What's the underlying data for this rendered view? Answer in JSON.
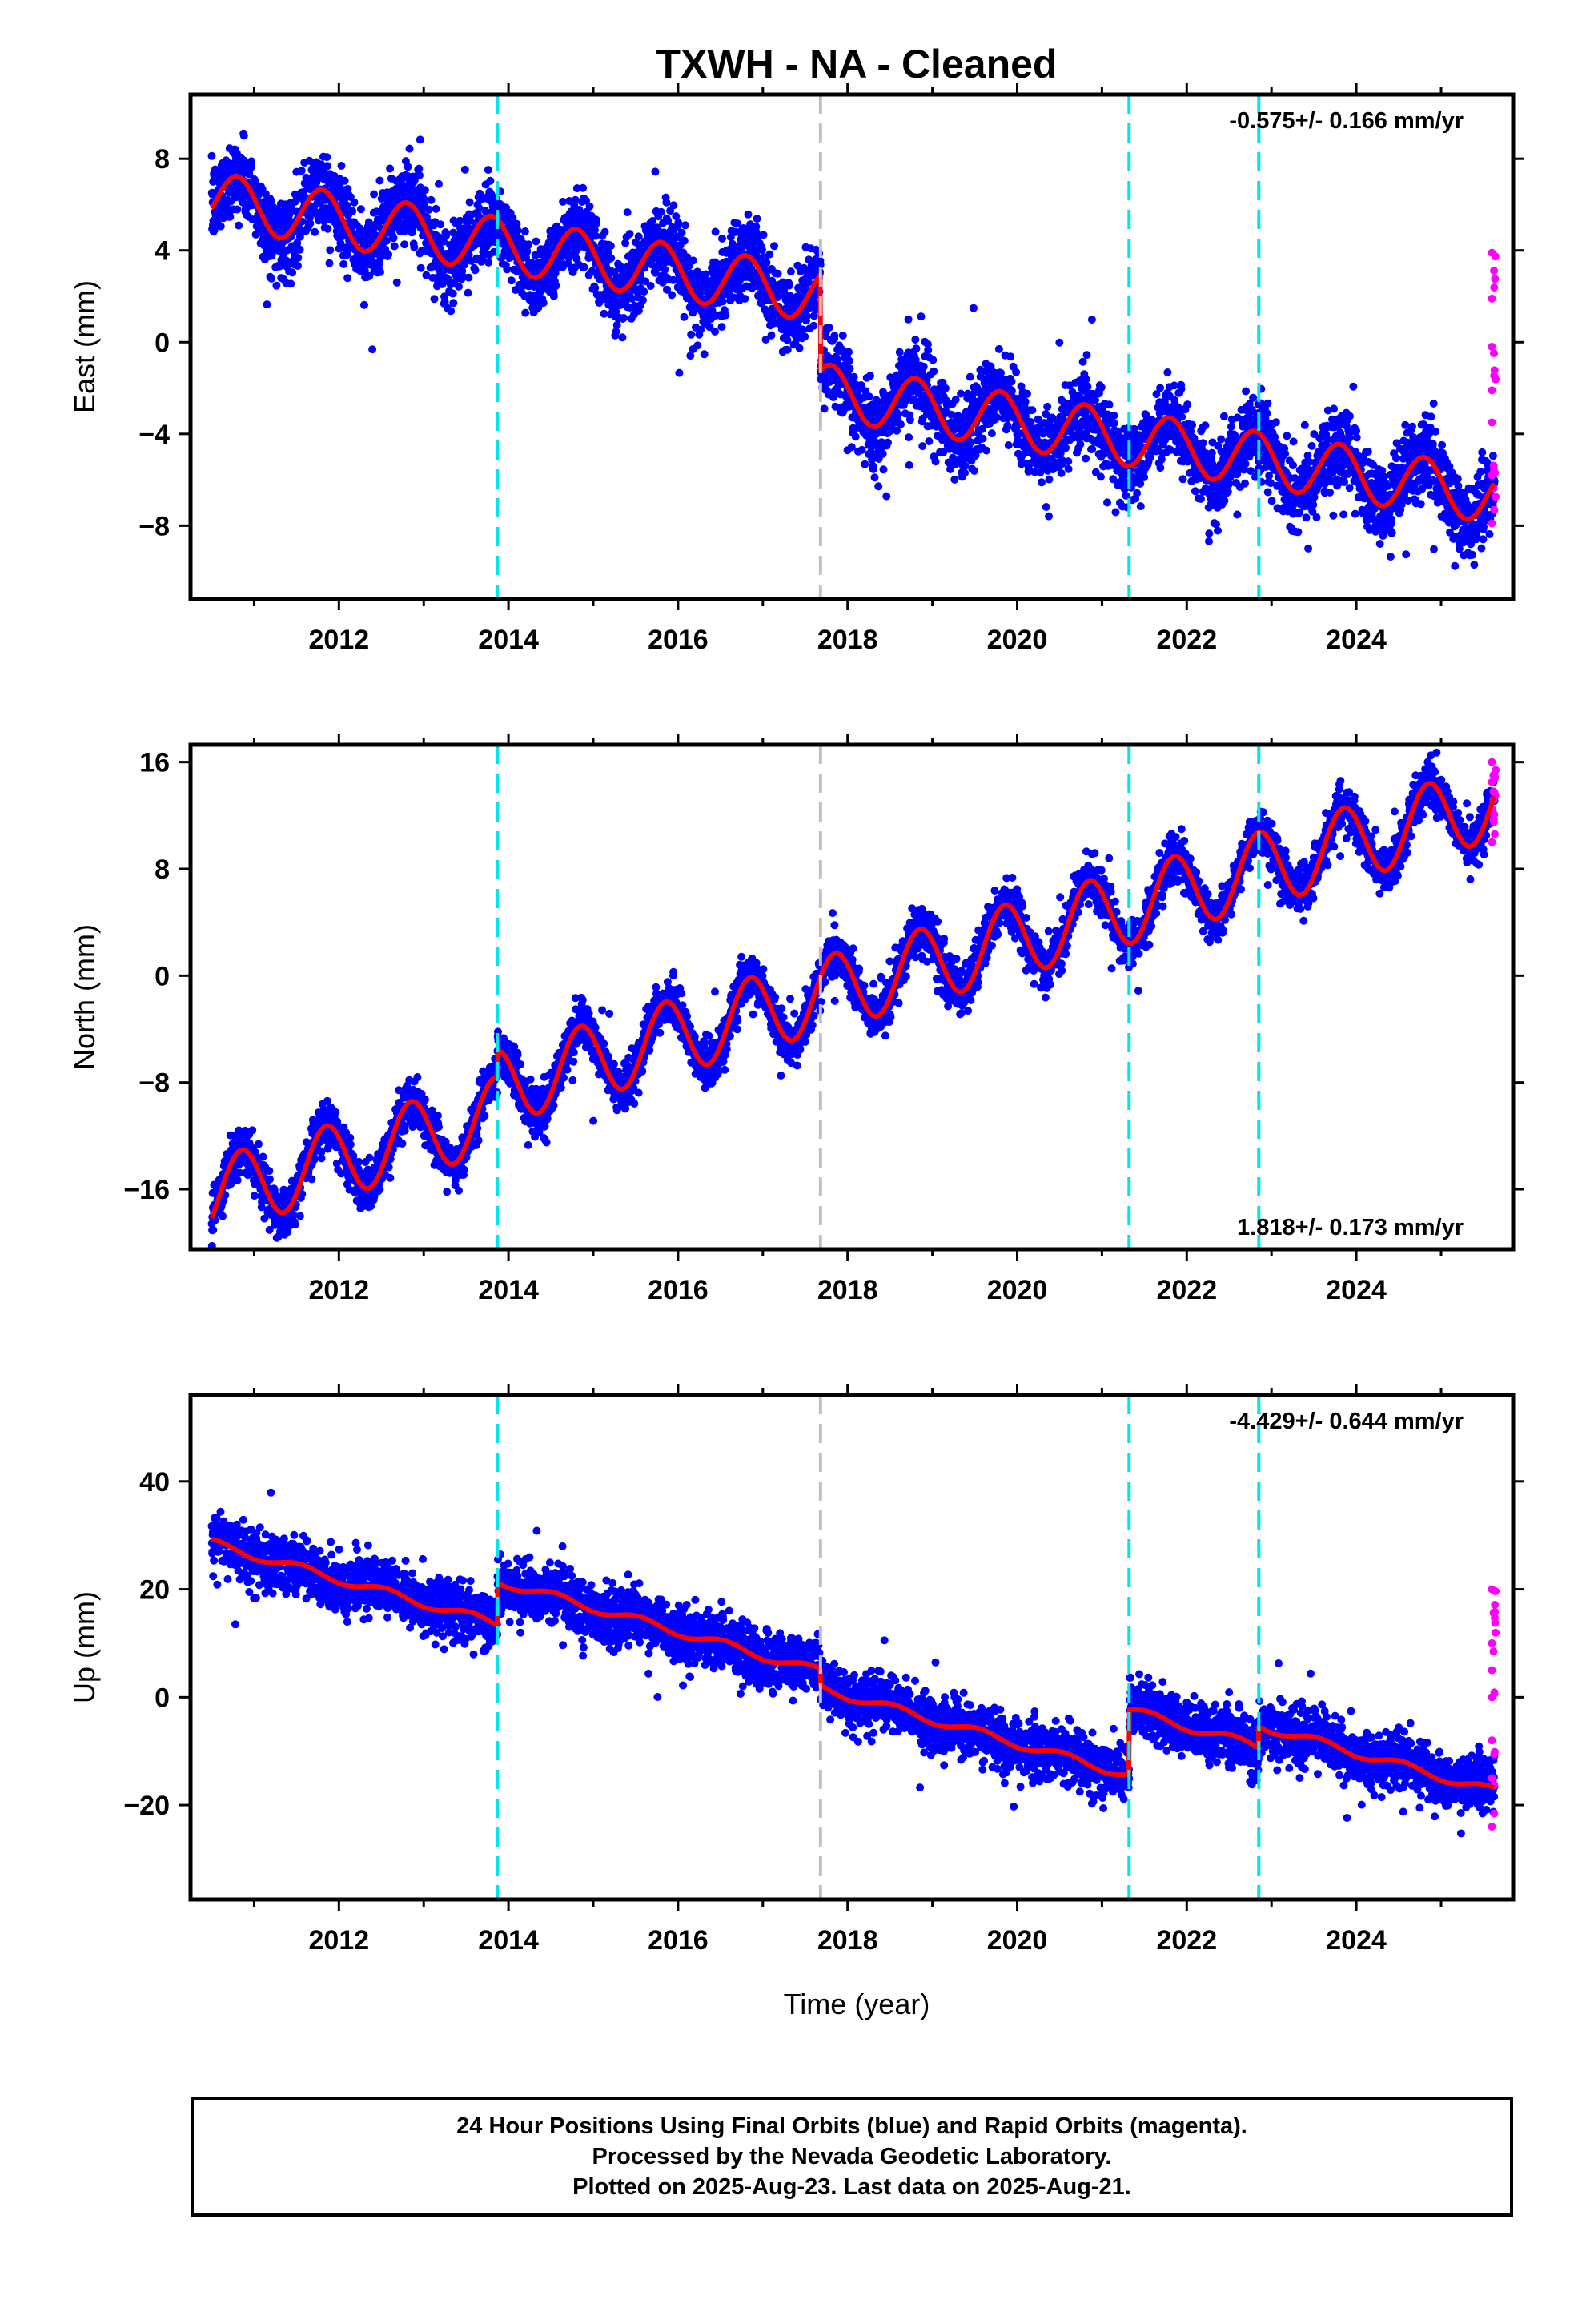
{
  "title": "TXWH  - NA - Cleaned",
  "x_axis_label": "Time (year)",
  "footer": {
    "line1": "24 Hour Positions Using Final Orbits (blue) and Rapid Orbits (magenta).",
    "line2": "Processed by the Nevada Geodetic Laboratory.",
    "line3": "Plotted on 2025-Aug-23. Last data on 2025-Aug-21."
  },
  "colors": {
    "final_orbits": "#0000ff",
    "rapid_orbits": "#ff00ff",
    "model": "#ff0000",
    "event_equipment": "#00e5ee",
    "event_other": "#c0c0c0"
  },
  "chart_data": [
    {
      "type": "scatter",
      "component": "East",
      "ylabel": "East (mm)",
      "xlim": [
        2010.25,
        2025.85
      ],
      "ylim": [
        -11.2,
        10.8
      ],
      "x_ticks": [
        2012,
        2014,
        2016,
        2018,
        2020,
        2022,
        2024
      ],
      "y_ticks": [
        -8,
        -4,
        0,
        4,
        8
      ],
      "y_tick_labels": [
        "−8",
        "−4",
        "0",
        "4",
        "8"
      ],
      "rate_label": "-0.575+/- 0.166 mm/yr",
      "rate_position": "top-right",
      "vertical_lines": [
        {
          "x": 2013.87,
          "color": "cyan"
        },
        {
          "x": 2017.68,
          "color": "gray"
        },
        {
          "x": 2021.32,
          "color": "cyan"
        },
        {
          "x": 2022.85,
          "color": "cyan"
        }
      ],
      "model": {
        "start": 2010.5,
        "end": 2025.63,
        "ref": 2010.5,
        "intercept": 6.2,
        "rate": -0.575,
        "seasonal_amp": 1.2,
        "seasonal_phase": 0.55,
        "offsets": [
          {
            "x": 2017.68,
            "value": -4.2
          }
        ]
      },
      "scatter": {
        "daily_noise": 1.5,
        "rapid_count": 14
      },
      "rapid_points": [
        [
          2025.6,
          3.9
        ],
        [
          2025.6,
          1.9
        ],
        [
          2025.6,
          -0.2
        ],
        [
          2025.6,
          -2.1
        ],
        [
          2025.6,
          -3.5
        ],
        [
          2025.6,
          -5.8
        ],
        [
          2025.6,
          -7.9
        ]
      ]
    },
    {
      "type": "scatter",
      "component": "North",
      "ylabel": "North (mm)",
      "xlim": [
        2010.25,
        2025.85
      ],
      "ylim": [
        -20.5,
        17.3
      ],
      "x_ticks": [
        2012,
        2014,
        2016,
        2018,
        2020,
        2022,
        2024
      ],
      "y_ticks": [
        -16,
        -8,
        0,
        8,
        16
      ],
      "y_tick_labels": [
        "−16",
        "−8",
        "0",
        "8",
        "16"
      ],
      "rate_label": "1.818+/- 0.173 mm/yr",
      "rate_position": "bottom-right",
      "vertical_lines": [
        {
          "x": 2013.87,
          "color": "cyan"
        },
        {
          "x": 2017.68,
          "color": "gray"
        },
        {
          "x": 2021.32,
          "color": "cyan"
        },
        {
          "x": 2022.85,
          "color": "cyan"
        }
      ],
      "model": {
        "start": 2010.5,
        "end": 2025.63,
        "ref": 2010.5,
        "intercept": -16.5,
        "rate": 1.818,
        "seasonal_amp": 2.8,
        "seasonal_phase": 0.6,
        "offsets": [
          {
            "x": 2013.87,
            "value": 2.0
          }
        ]
      },
      "scatter": {
        "daily_noise": 1.5,
        "rapid_count": 14
      },
      "rapid_points": [
        [
          2025.6,
          16.0
        ],
        [
          2025.6,
          14.5
        ],
        [
          2025.6,
          12.5
        ],
        [
          2025.6,
          10.0
        ]
      ]
    },
    {
      "type": "scatter",
      "component": "Up",
      "ylabel": "Up (mm)",
      "xlim": [
        2010.25,
        2025.85
      ],
      "ylim": [
        -37.5,
        56
      ],
      "x_ticks": [
        2012,
        2014,
        2016,
        2018,
        2020,
        2022,
        2024
      ],
      "y_ticks": [
        -20,
        0,
        20,
        40
      ],
      "y_tick_labels": [
        "−20",
        "0",
        "20",
        "40"
      ],
      "rate_label": "-4.429+/- 0.644 mm/yr",
      "rate_position": "top-right",
      "vertical_lines": [
        {
          "x": 2013.87,
          "color": "cyan"
        },
        {
          "x": 2017.68,
          "color": "gray"
        },
        {
          "x": 2021.32,
          "color": "cyan"
        },
        {
          "x": 2022.85,
          "color": "cyan"
        }
      ],
      "model": {
        "start": 2010.5,
        "end": 2025.63,
        "ref": 2010.5,
        "intercept": 28.5,
        "rate": -4.429,
        "seasonal_amp": 0.8,
        "seasonal_phase": 0.3,
        "offsets": [
          {
            "x": 2013.87,
            "value": 8.0
          },
          {
            "x": 2017.68,
            "value": -3.0
          },
          {
            "x": 2021.32,
            "value": 12.0
          },
          {
            "x": 2022.85,
            "value": 4.0
          }
        ]
      },
      "scatter": {
        "daily_noise": 4.5,
        "rapid_count": 14
      },
      "rapid_points": [
        [
          2025.6,
          20.0
        ],
        [
          2025.6,
          10.0
        ],
        [
          2025.6,
          5.0
        ],
        [
          2025.6,
          0.0
        ],
        [
          2025.6,
          -8.0
        ],
        [
          2025.6,
          -15.0
        ],
        [
          2025.6,
          -24.0
        ]
      ]
    }
  ]
}
